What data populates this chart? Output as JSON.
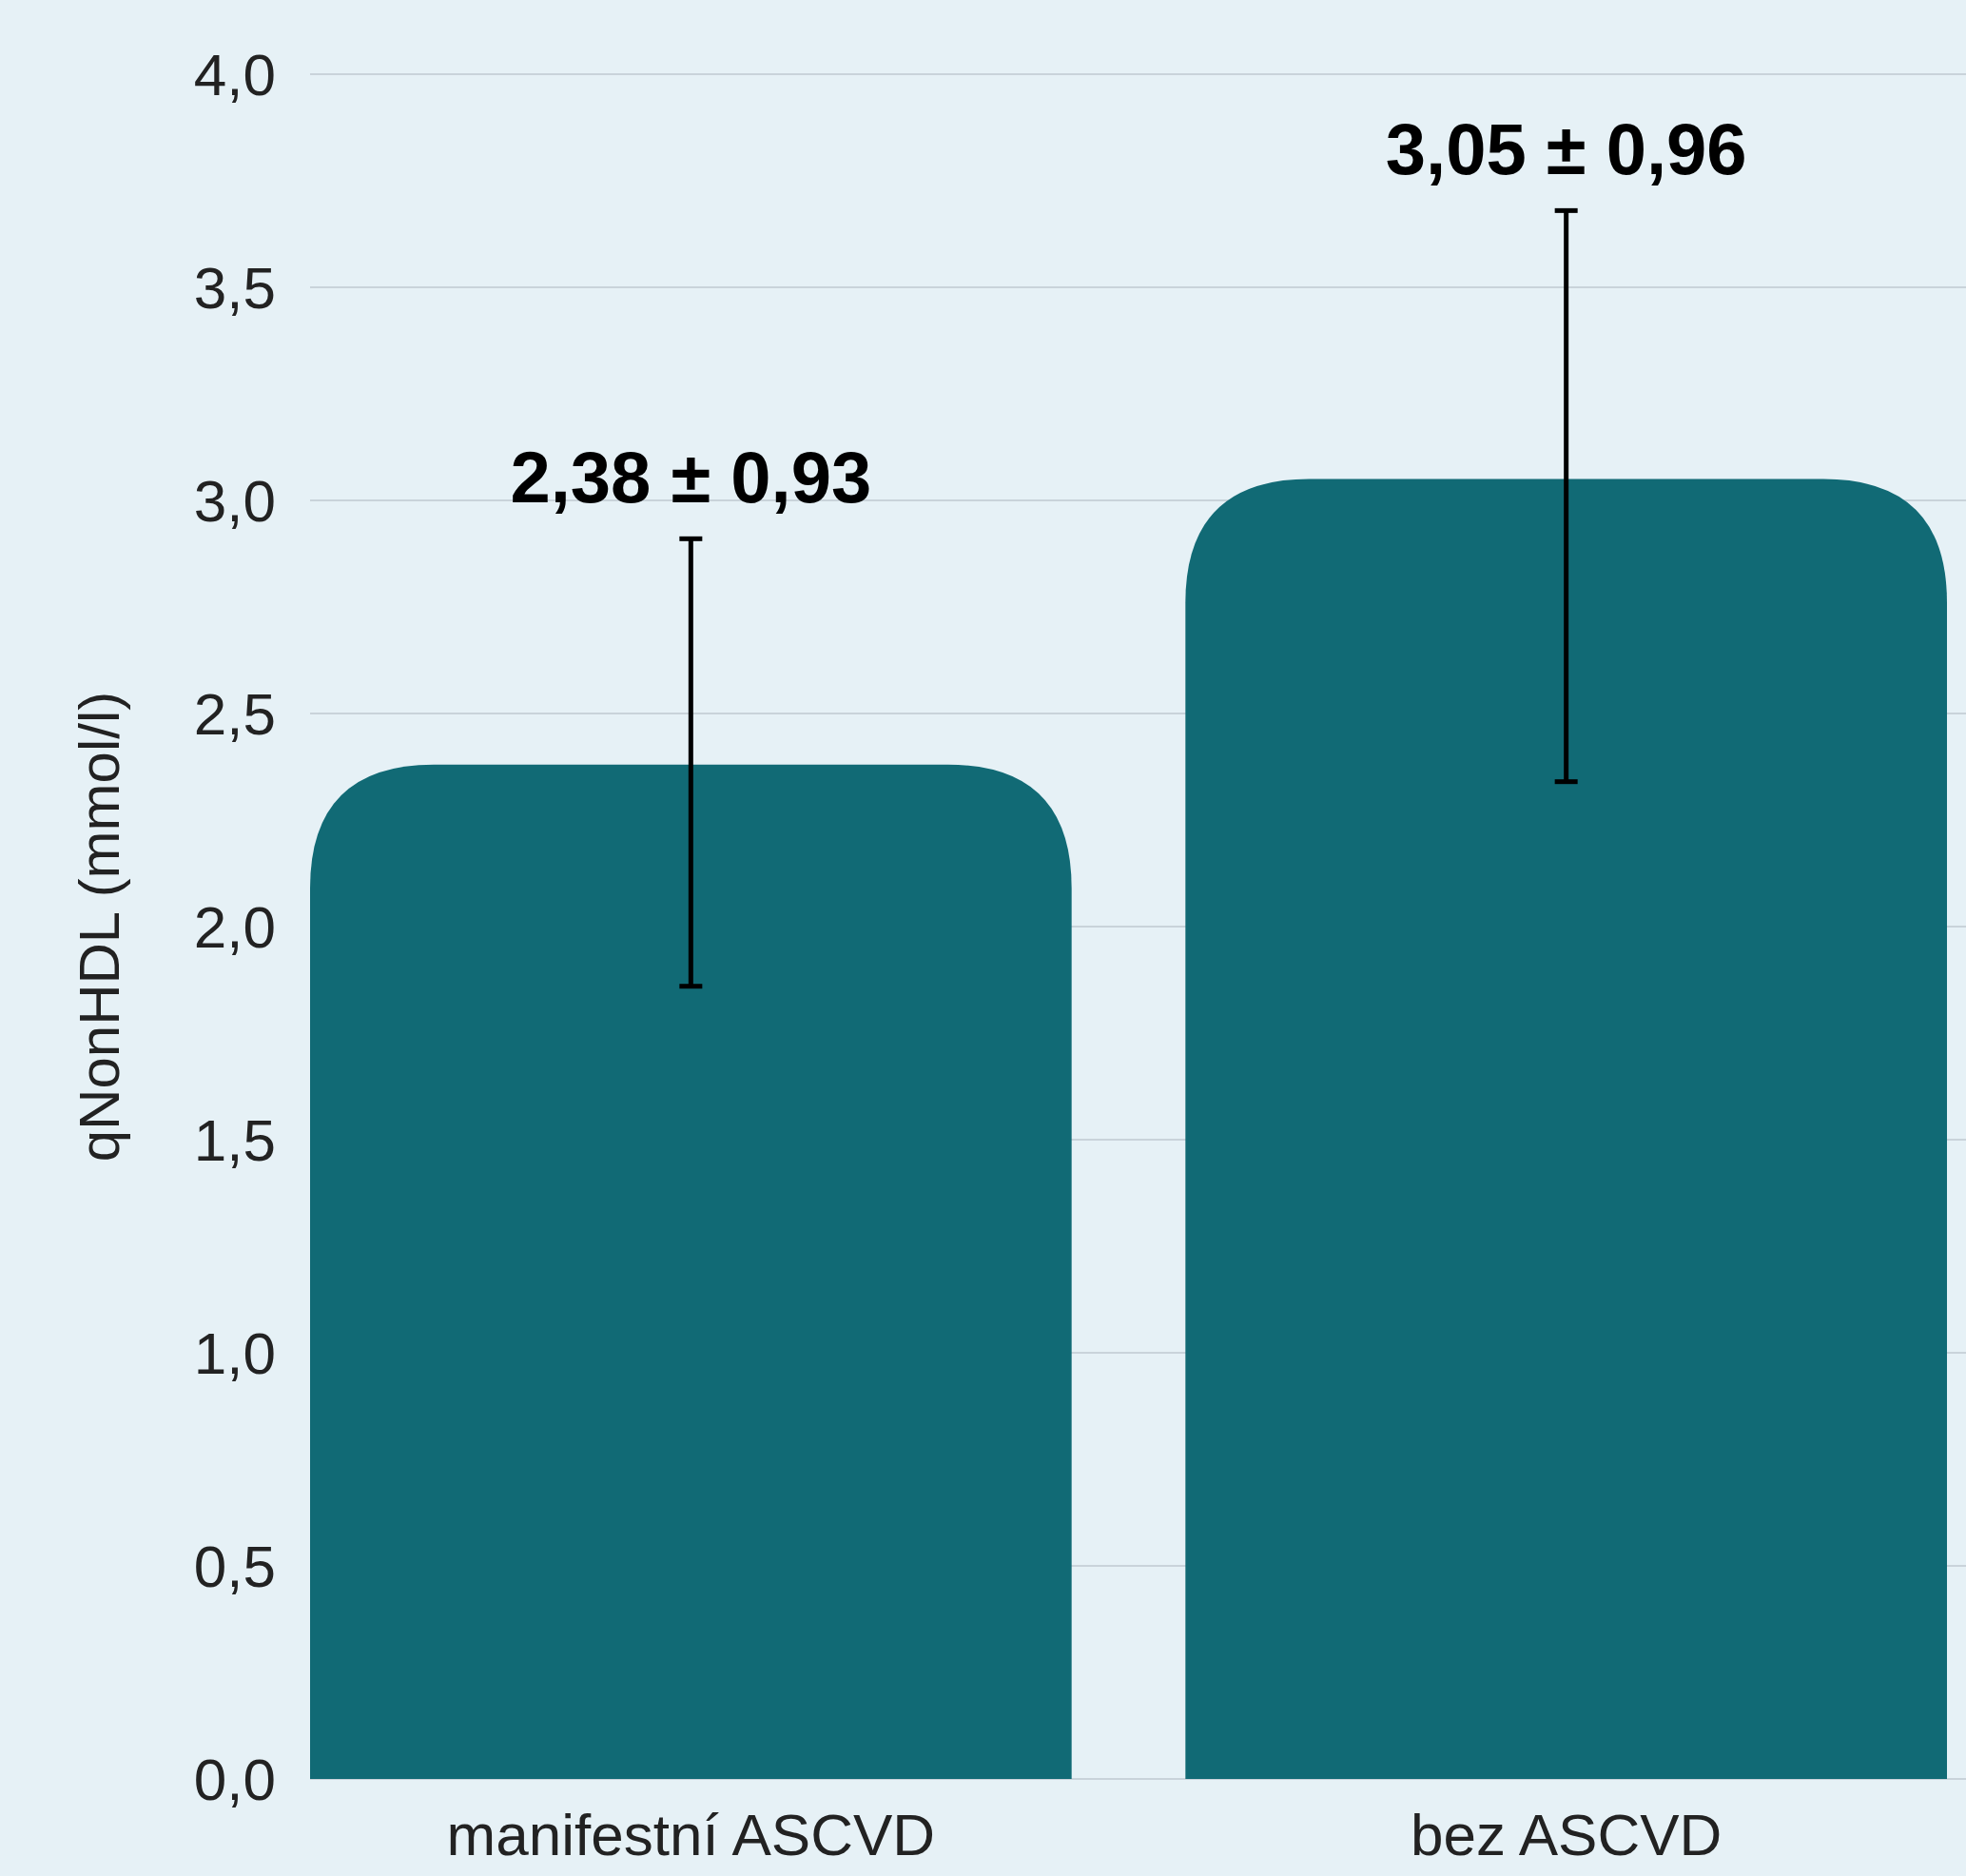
{
  "chart_data": {
    "type": "bar",
    "ylabel": "qNonHDL (mmol/l)",
    "categories": [
      "manifestní ASCVD",
      "bez ASCVD"
    ],
    "values": [
      2.38,
      3.05
    ],
    "color": "#116a75",
    "errors": [
      [
        1.86,
        2.91
      ],
      [
        2.34,
        3.68
      ]
    ],
    "annotations": [
      {
        "text": "2,38 ± 0,93",
        "x": "manifestní ASCVD",
        "y": 2.91
      },
      {
        "text": "3,05 ± 0,96",
        "x": "bez ASCVD",
        "y": 3.68
      }
    ],
    "ylim": [
      0,
      4
    ],
    "yticks": [
      {
        "value": 0,
        "label": "0,0"
      },
      {
        "value": 0.5,
        "label": "0,5"
      },
      {
        "value": 1,
        "label": "1,0"
      },
      {
        "value": 1.5,
        "label": "1,5"
      },
      {
        "value": 2,
        "label": "2,0"
      },
      {
        "value": 2.5,
        "label": "2,5"
      },
      {
        "value": 3,
        "label": "3,0"
      },
      {
        "value": 3.5,
        "label": "3,5"
      },
      {
        "value": 4,
        "label": "4,0"
      }
    ],
    "grid": "y"
  }
}
